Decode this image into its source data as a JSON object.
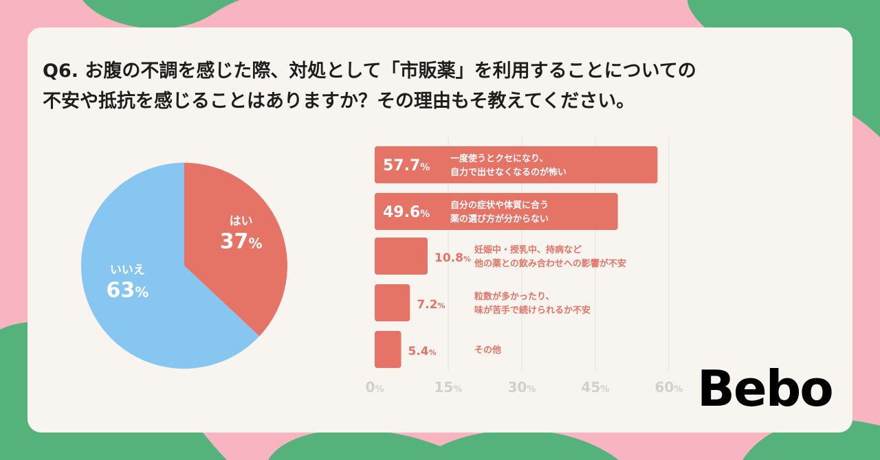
{
  "title_lines": [
    "Q6.  お腹の不調を感じた際、対処として「市販薬」を利用することについての",
    "不安や抵抗を感じることはありますか？その理由もそ教えてください。"
  ],
  "logo": "Bebo",
  "colors": {
    "red": "#e57366",
    "blue": "#88c6f2",
    "green": "#55b27a",
    "pink": "#f8b4c0",
    "card": "#f8f5f0",
    "axis_text": "#d0d0d0",
    "grid": "#e4e0dc"
  },
  "chart_data": [
    {
      "type": "pie",
      "title": "",
      "slices": [
        {
          "label": "はい",
          "value": 37,
          "value_text": "37",
          "unit": "%",
          "color": "#e57366"
        },
        {
          "label": "いいえ",
          "value": 63,
          "value_text": "63",
          "unit": "%",
          "color": "#88c6f2"
        }
      ]
    },
    {
      "type": "bar",
      "orientation": "horizontal",
      "title": "",
      "xlabel": "",
      "ylabel": "",
      "xlim": [
        0,
        60
      ],
      "ticks": [
        {
          "value": 0,
          "label": "0",
          "unit": "%"
        },
        {
          "value": 15,
          "label": "15",
          "unit": "%"
        },
        {
          "value": 30,
          "label": "30",
          "unit": "%"
        },
        {
          "value": 45,
          "label": "45",
          "unit": "%"
        },
        {
          "value": 60,
          "label": "60",
          "unit": "%"
        }
      ],
      "grid": true,
      "bars": [
        {
          "value": 57.7,
          "value_text": "57.7",
          "unit": "%",
          "label_lines": [
            "一度使うとクセになり、",
            "自力で出せなくなるのが怖い"
          ]
        },
        {
          "value": 49.6,
          "value_text": "49.6",
          "unit": "%",
          "label_lines": [
            "自分の症状や体質に合う",
            "薬の選び方が分からない"
          ]
        },
        {
          "value": 10.8,
          "value_text": "10.8",
          "unit": "%",
          "label_lines": [
            "妊娠中・授乳中、持病など",
            "他の薬との飲み合わせへの影響が不安"
          ]
        },
        {
          "value": 7.2,
          "value_text": "7.2",
          "unit": "%",
          "label_lines": [
            "粒数が多かったり、",
            "味が苦手で続けられるか不安"
          ]
        },
        {
          "value": 5.4,
          "value_text": "5.4",
          "unit": "%",
          "label_lines": [
            "その他"
          ]
        }
      ]
    }
  ]
}
